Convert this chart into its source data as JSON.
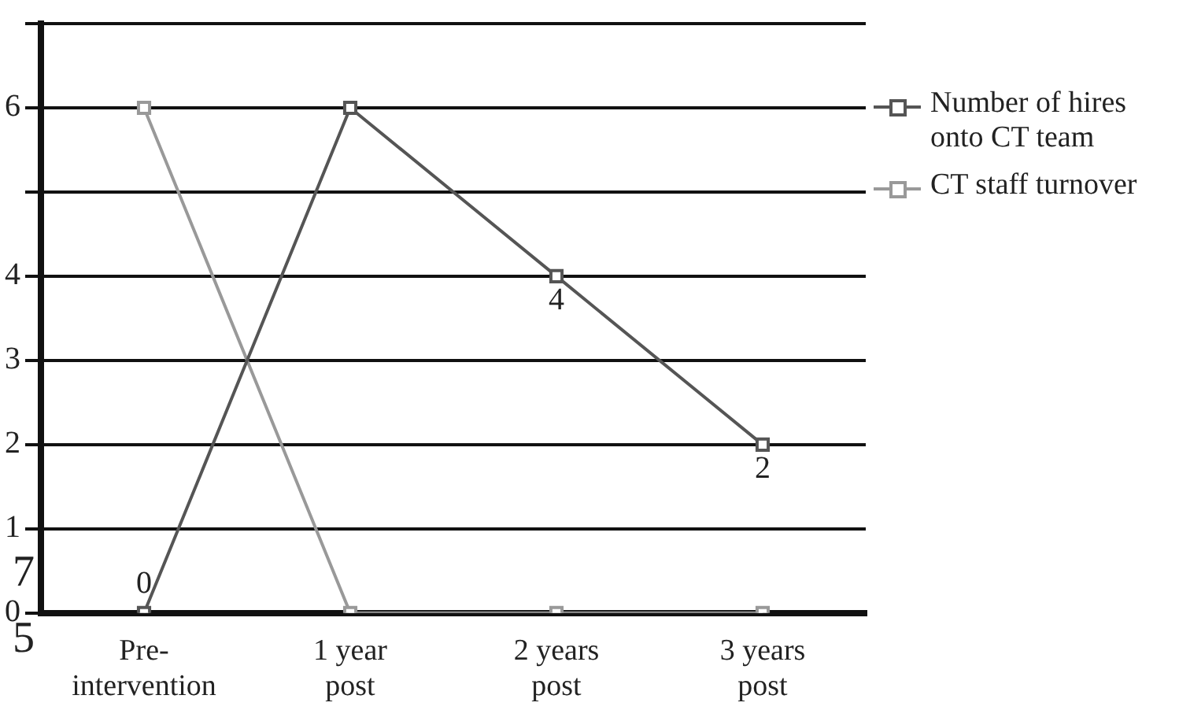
{
  "chart_data": {
    "type": "line",
    "categories": [
      "Pre-\nintervention",
      "1 year\npost",
      "2 years\npost",
      "3 years\npost"
    ],
    "series": [
      {
        "name": "Number of hires onto CT team",
        "color": "#555555",
        "values": [
          0,
          6,
          4,
          2
        ],
        "value_labels": [
          "0",
          null,
          "4",
          "2"
        ]
      },
      {
        "name": "CT staff turnover",
        "color": "#999999",
        "values": [
          6,
          0,
          0,
          0
        ]
      }
    ],
    "ylim": [
      0,
      7
    ],
    "yticks": [
      0,
      1,
      2,
      3,
      4,
      {
        "value": 5,
        "label": null
      },
      6,
      {
        "value": 7,
        "label": null
      }
    ],
    "annotations": [
      "7",
      "5"
    ],
    "grid": "y",
    "legend": "right",
    "marker": "square"
  }
}
